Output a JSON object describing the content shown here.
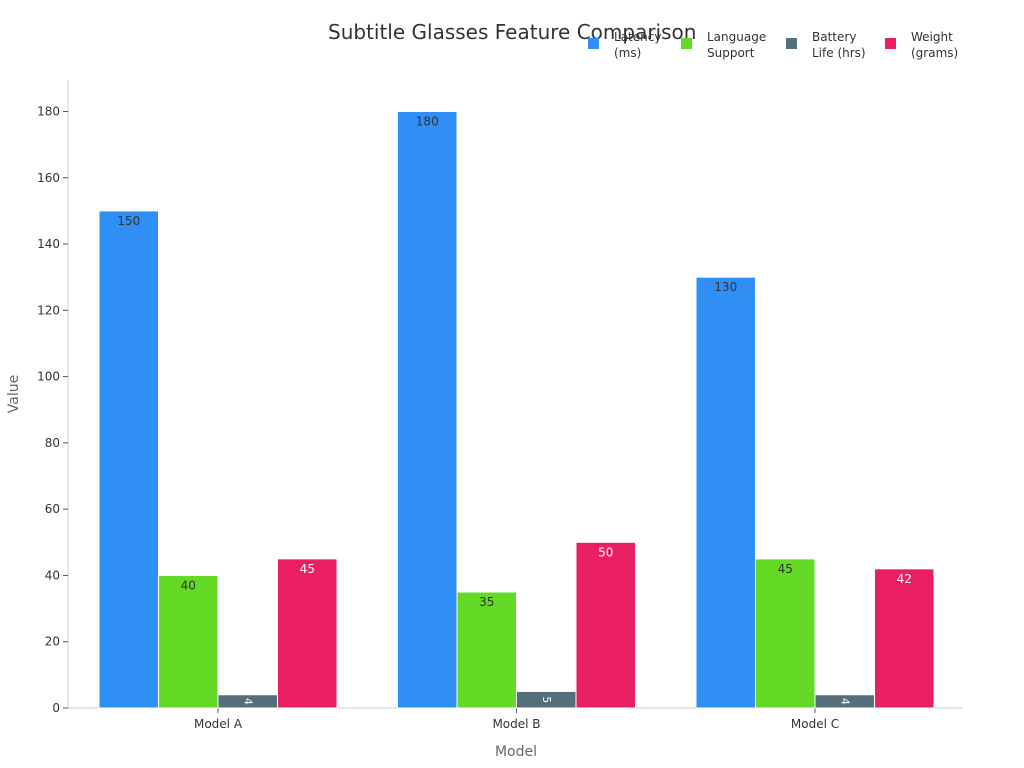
{
  "chart_data": {
    "type": "bar",
    "title": "Subtitle Glasses Feature Comparison",
    "xlabel": "Model",
    "ylabel": "Value",
    "categories": [
      "Model A",
      "Model B",
      "Model C"
    ],
    "ylim": [
      0,
      190
    ],
    "yticks": [
      0,
      20,
      40,
      60,
      80,
      100,
      120,
      140,
      160,
      180
    ],
    "grid": false,
    "legend_position": "top-right",
    "series": [
      {
        "name": "Latency\n(ms)",
        "color": "#2f8ff5",
        "values": [
          150,
          180,
          130
        ]
      },
      {
        "name": "Language\nSupport",
        "color": "#64d926",
        "values": [
          40,
          35,
          45
        ]
      },
      {
        "name": "Battery\nLife (hrs)",
        "color": "#546e7a",
        "values": [
          4,
          5,
          4
        ]
      },
      {
        "name": "Weight\n(grams)",
        "color": "#e91e63",
        "values": [
          45,
          50,
          42
        ]
      }
    ]
  }
}
